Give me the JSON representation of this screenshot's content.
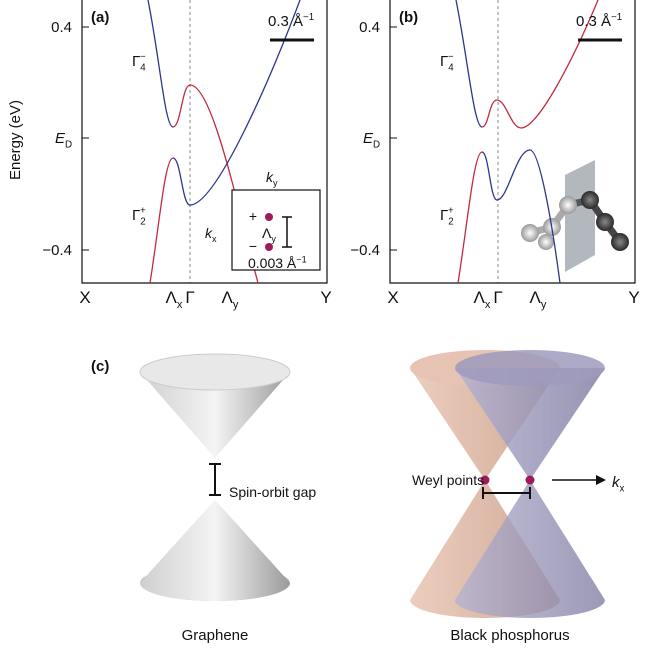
{
  "panels": [
    {
      "label": "(a)",
      "y_axis_label": "Energy (eV)",
      "y_ticks": [
        {
          "main": "0.4"
        },
        {
          "main": "E",
          "sub": "D"
        },
        {
          "main": "−0.4"
        }
      ],
      "x_ticks": [
        {
          "main": "X"
        },
        {
          "main": "Λ",
          "sub": "x"
        },
        {
          "main": "Γ"
        },
        {
          "main": "Λ",
          "sub": "y"
        },
        {
          "main": "Y"
        }
      ],
      "scale_bar": {
        "main": "0.3 Å",
        "sup": "−1"
      },
      "upper_band": {
        "main": "Γ",
        "sub": "4",
        "sup": "−"
      },
      "lower_band": {
        "main": "Γ",
        "sub": "2",
        "sup": "+"
      }
    },
    {
      "label": "(b)",
      "y_ticks": [
        {
          "main": "0.4"
        },
        {
          "main": "E",
          "sub": "D"
        },
        {
          "main": "−0.4"
        }
      ],
      "x_ticks": [
        {
          "main": "X"
        },
        {
          "main": "Λ",
          "sub": "x"
        },
        {
          "main": "Γ"
        },
        {
          "main": "Λ",
          "sub": "y"
        },
        {
          "main": "Y"
        }
      ],
      "scale_bar": {
        "main": "0.3 Å",
        "sup": "−1"
      },
      "upper_band": {
        "main": "Γ",
        "sub": "4",
        "sup": "−"
      },
      "lower_band": {
        "main": "Γ",
        "sub": "2",
        "sup": "+"
      }
    }
  ],
  "inset": {
    "ky": {
      "main": "k",
      "sub": "y"
    },
    "kx": {
      "main": "k",
      "sub": "x"
    },
    "plus": "+",
    "minus": "−",
    "point": {
      "main": "Λ",
      "sub": "y"
    },
    "scale": {
      "main": "0.003 Å",
      "sup": "−1"
    }
  },
  "panel_c": {
    "label": "(c)",
    "gap_label": "Spin-orbit gap",
    "left_caption": "Graphene",
    "weyl_label": "Weyl points",
    "kx": {
      "main": "k",
      "sub": "x"
    },
    "right_caption": "Black phosphorus"
  }
}
